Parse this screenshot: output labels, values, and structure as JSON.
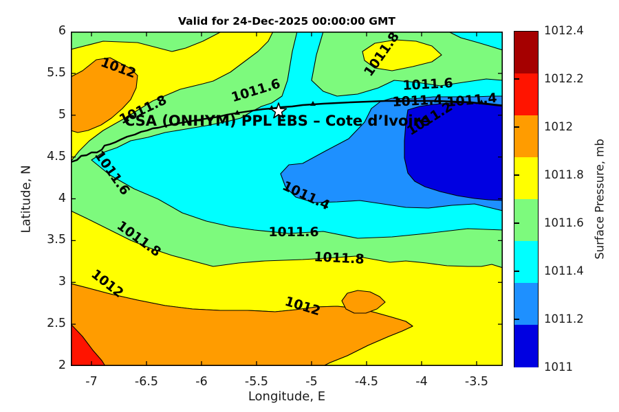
{
  "title": "Valid for 24-Dec-2025 00:00:00 GMT",
  "annotation": {
    "label": "CSA (ONHYM) PPL EBS  – Cote d’Ivoire",
    "marker": "white-star"
  },
  "axes": {
    "xlabel": "Longitude, E",
    "ylabel": "Latitude, N",
    "xticks": [
      "-7",
      "-6.5",
      "-6",
      "-5.5",
      "-5",
      "-4.5",
      "-4",
      "-3.5"
    ],
    "xtick_values": [
      -7,
      -6.5,
      -6,
      -5.5,
      -5,
      -4.5,
      -4,
      -3.5
    ],
    "yticks": [
      "6",
      "5.5",
      "5",
      "4.5",
      "4",
      "3.5",
      "3",
      "2.5",
      "2"
    ],
    "ytick_values": [
      6,
      5.5,
      5,
      4.5,
      4,
      3.5,
      3,
      2.5,
      2
    ],
    "xlim": [
      -7.19,
      -3.25
    ],
    "ylim": [
      2,
      6
    ]
  },
  "colorbar": {
    "label": "Surface Pressure, mb",
    "tick_labels": [
      "1012.4",
      "1012.2",
      "1012",
      "1011.8",
      "1011.6",
      "1011.4",
      "1011.2",
      "1011"
    ],
    "band_colors_low_to_high": [
      "#0000e1",
      "#1e90ff",
      "#00ffff",
      "#7dfa7d",
      "#ffff00",
      "#ff9c00",
      "#ff1400",
      "#a50000"
    ]
  },
  "chart_data": {
    "type": "filled_contour_map",
    "title": "Valid for 24-Dec-2025 00:00:00 GMT",
    "valid_time": "24-Dec-2025 00:00:00 GMT",
    "variable": "Surface Pressure",
    "units": "mb",
    "xlabel": "Longitude, E",
    "ylabel": "Latitude, N",
    "xlim": [
      -7.19,
      -3.25
    ],
    "ylim": [
      2,
      6
    ],
    "grid": false,
    "legend_position": "right-colorbar",
    "levels_mb": [
      1011,
      1011.2,
      1011.4,
      1011.6,
      1011.8,
      1012,
      1012.2,
      1012.4
    ],
    "contour_labels": [
      {
        "value": 1012,
        "lon": -6.76,
        "lat": 5.57
      },
      {
        "value": 1011.8,
        "lon": -6.53,
        "lat": 5.06
      },
      {
        "value": 1011.6,
        "lon": -6.81,
        "lat": 4.31
      },
      {
        "value": 1011.8,
        "lon": -6.57,
        "lat": 3.52
      },
      {
        "value": 1012,
        "lon": -6.86,
        "lat": 2.99
      },
      {
        "value": 1011.6,
        "lon": -5.51,
        "lat": 5.29
      },
      {
        "value": 1011.8,
        "lon": -4.36,
        "lat": 5.73
      },
      {
        "value": 1011.6,
        "lon": -3.94,
        "lat": 5.37
      },
      {
        "value": 1011.4,
        "lon": -4.04,
        "lat": 5.17
      },
      {
        "value": 1011.4,
        "lon": -3.54,
        "lat": 5.18
      },
      {
        "value": 1011.2,
        "lon": -3.96,
        "lat": 4.96
      },
      {
        "value": 1011.4,
        "lon": -5.05,
        "lat": 4.04
      },
      {
        "value": 1011.6,
        "lon": -5.16,
        "lat": 3.6
      },
      {
        "value": 1011.8,
        "lon": -4.75,
        "lat": 3.29
      },
      {
        "value": 1012,
        "lon": -5.08,
        "lat": 2.71
      }
    ],
    "star_marker": {
      "lon": -5.31,
      "lat": 5.06,
      "label": "CSA (ONHYM) PPL EBS  – Cote d’Ivoire"
    },
    "coastline_lonlat": [
      [
        -7.19,
        4.44
      ],
      [
        -6.55,
        4.8
      ],
      [
        -5.77,
        5.01
      ],
      [
        -4.89,
        5.14
      ],
      [
        -4.02,
        5.17
      ],
      [
        -3.26,
        5.11
      ]
    ],
    "features": {
      "low_pressure_center": {
        "lon": -3.7,
        "lat": 4.6,
        "value_mb": "below 1011.2"
      },
      "high_pressure_south_band": {
        "lat_range": [
          2,
          2.9
        ],
        "value_mb": "above 1012, above 1012.2 in SW corner"
      },
      "high_pressure_northwest": {
        "lon": -7.0,
        "lat": 5.4,
        "value_mb": "above 1012"
      }
    }
  }
}
